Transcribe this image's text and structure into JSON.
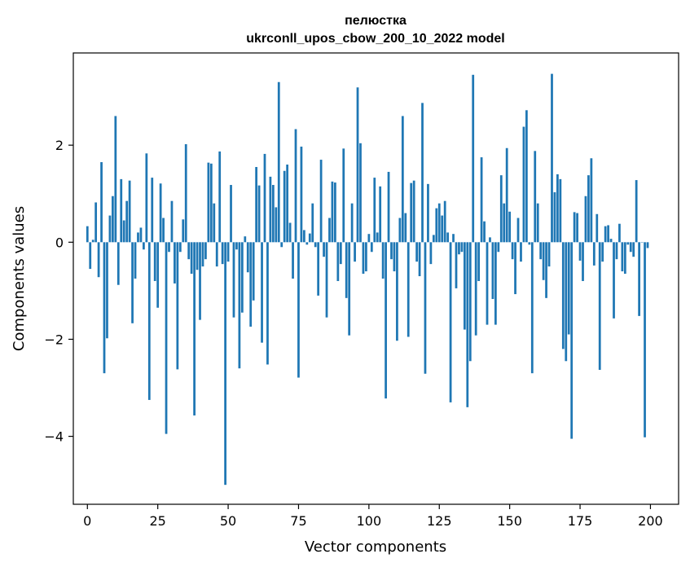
{
  "chart_data": {
    "type": "bar",
    "title_line1": "пелюстка",
    "title_line2": "ukrconll_upos_cbow_200_10_2022 model",
    "xlabel": "Vector components",
    "ylabel": "Components values",
    "xlim": [
      -5,
      210
    ],
    "ylim": [
      -5.4,
      3.9
    ],
    "xticks": [
      0,
      25,
      50,
      75,
      100,
      125,
      150,
      175,
      200
    ],
    "xtick_labels": [
      "0",
      "25",
      "50",
      "75",
      "100",
      "125",
      "150",
      "175",
      "200"
    ],
    "yticks": [
      -4,
      -2,
      0,
      2
    ],
    "ytick_labels": [
      "−4",
      "−2",
      "0",
      "2"
    ],
    "grid": false,
    "bar_color": "#1f77b4",
    "x": [
      0,
      1,
      2,
      3,
      4,
      5,
      6,
      7,
      8,
      9,
      10,
      11,
      12,
      13,
      14,
      15,
      16,
      17,
      18,
      19,
      20,
      21,
      22,
      23,
      24,
      25,
      26,
      27,
      28,
      29,
      30,
      31,
      32,
      33,
      34,
      35,
      36,
      37,
      38,
      39,
      40,
      41,
      42,
      43,
      44,
      45,
      46,
      47,
      48,
      49,
      50,
      51,
      52,
      53,
      54,
      55,
      56,
      57,
      58,
      59,
      60,
      61,
      62,
      63,
      64,
      65,
      66,
      67,
      68,
      69,
      70,
      71,
      72,
      73,
      74,
      75,
      76,
      77,
      78,
      79,
      80,
      81,
      82,
      83,
      84,
      85,
      86,
      87,
      88,
      89,
      90,
      91,
      92,
      93,
      94,
      95,
      96,
      97,
      98,
      99,
      100,
      101,
      102,
      103,
      104,
      105,
      106,
      107,
      108,
      109,
      110,
      111,
      112,
      113,
      114,
      115,
      116,
      117,
      118,
      119,
      120,
      121,
      122,
      123,
      124,
      125,
      126,
      127,
      128,
      129,
      130,
      131,
      132,
      133,
      134,
      135,
      136,
      137,
      138,
      139,
      140,
      141,
      142,
      143,
      144,
      145,
      146,
      147,
      148,
      149,
      150,
      151,
      152,
      153,
      154,
      155,
      156,
      157,
      158,
      159,
      160,
      161,
      162,
      163,
      164,
      165,
      166,
      167,
      168,
      169,
      170,
      171,
      172,
      173,
      174,
      175,
      176,
      177,
      178,
      179,
      180,
      181,
      182,
      183,
      184,
      185,
      186,
      187,
      188,
      189,
      190,
      191,
      192,
      193,
      194,
      195,
      196,
      197,
      198,
      199
    ],
    "values": [
      0.33,
      -0.55,
      0.05,
      0.82,
      -0.72,
      1.65,
      -2.7,
      -1.98,
      0.55,
      0.95,
      2.6,
      -0.88,
      1.3,
      0.45,
      0.85,
      1.27,
      -1.67,
      -0.75,
      0.2,
      0.3,
      -0.15,
      1.83,
      -3.25,
      1.33,
      -0.8,
      -1.35,
      1.21,
      0.5,
      -3.95,
      -0.2,
      0.85,
      -0.85,
      -2.62,
      -0.2,
      0.47,
      2.02,
      -0.35,
      -0.65,
      -3.57,
      -0.57,
      -1.6,
      -0.5,
      -0.35,
      1.64,
      1.62,
      0.8,
      -0.5,
      1.87,
      -0.45,
      -5.0,
      -0.4,
      1.18,
      -1.55,
      -0.15,
      -2.6,
      -1.45,
      0.12,
      -0.62,
      -1.74,
      -1.2,
      1.55,
      1.17,
      -2.07,
      1.82,
      -2.52,
      1.35,
      1.18,
      0.72,
      3.3,
      -0.1,
      1.47,
      1.6,
      0.4,
      -0.75,
      2.33,
      -2.79,
      1.97,
      0.25,
      -0.05,
      0.18,
      0.8,
      -0.1,
      -1.1,
      1.7,
      -0.3,
      -1.55,
      0.5,
      1.25,
      1.23,
      -0.8,
      -0.45,
      1.93,
      -1.15,
      -1.92,
      0.8,
      -0.4,
      3.19,
      2.04,
      -0.65,
      -0.6,
      0.17,
      -0.2,
      1.33,
      0.2,
      1.15,
      -0.75,
      -3.22,
      1.45,
      -0.35,
      -0.6,
      -2.03,
      0.5,
      2.6,
      0.6,
      -1.95,
      1.22,
      1.27,
      -0.4,
      -0.7,
      2.87,
      -2.71,
      1.2,
      -0.45,
      0.15,
      0.7,
      0.8,
      0.55,
      0.85,
      0.2,
      -3.3,
      0.17,
      -0.95,
      -0.25,
      -0.2,
      -1.8,
      -3.4,
      -2.45,
      3.45,
      -1.92,
      -0.8,
      1.75,
      0.43,
      -1.7,
      0.1,
      -1.17,
      -1.7,
      -0.2,
      1.38,
      0.8,
      1.94,
      0.63,
      -0.35,
      -1.07,
      0.5,
      -0.4,
      2.38,
      2.72,
      -0.05,
      -2.7,
      1.88,
      0.8,
      -0.35,
      -0.78,
      -1.15,
      -0.5,
      3.47,
      1.03,
      1.4,
      1.3,
      -2.2,
      -2.45,
      -1.9,
      -4.05,
      0.62,
      0.6,
      -0.38,
      -0.8,
      0.95,
      1.38,
      1.73,
      -0.48,
      0.58,
      -2.63,
      -0.4,
      0.33,
      0.35,
      0.07,
      -1.57,
      -0.35,
      0.38,
      -0.6,
      -0.65,
      -0.05,
      -0.2,
      -0.3,
      1.28,
      -1.52,
      0.0,
      -4.02,
      -0.12
    ]
  }
}
